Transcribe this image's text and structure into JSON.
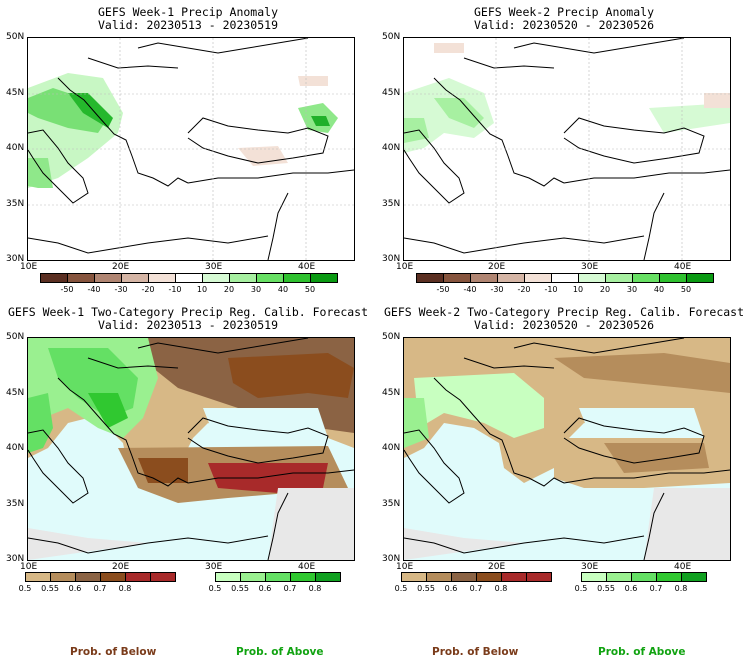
{
  "panels": [
    {
      "title": "GEFS Week-1 Precip Anomaly",
      "valid": "Valid: 20230513 - 20230519"
    },
    {
      "title": "GEFS Week-2 Precip Anomaly",
      "valid": "Valid: 20230520 - 20230526"
    },
    {
      "title": "GEFS Week-1 Two-Category Precip Reg. Calib. Forecast",
      "valid": "Valid: 20230513 - 20230519"
    },
    {
      "title": "GEFS Week-2 Two-Category Precip Reg. Calib. Forecast",
      "valid": "Valid: 20230520 - 20230526"
    }
  ],
  "axes": {
    "lat_labels": [
      "50N",
      "45N",
      "40N",
      "35N",
      "30N"
    ],
    "lon_labels": [
      "10E",
      "20E",
      "30E",
      "40E"
    ]
  },
  "anomaly_colorbar": {
    "labels": [
      "-50",
      "-40",
      "-30",
      "-20",
      "-10",
      "10",
      "20",
      "30",
      "40",
      "50"
    ],
    "colors": [
      "#5b2f22",
      "#86543d",
      "#b08572",
      "#d5b5a5",
      "#f3e1d7",
      "#ffffff",
      "#d6fad4",
      "#a7f0a1",
      "#68e064",
      "#2fc12f",
      "#0a9a12"
    ]
  },
  "prob_below_colorbar": {
    "labels": [
      "0.5",
      "0.55",
      "0.6",
      "0.7",
      "0.8"
    ],
    "colors": [
      "#d7b886",
      "#b58d5c",
      "#8b6344",
      "#8b4d1e",
      "#a82a2a"
    ]
  },
  "prob_above_colorbar": {
    "labels": [
      "0.5",
      "0.55",
      "0.6",
      "0.7",
      "0.8"
    ],
    "colors": [
      "#c8ffc0",
      "#9af090",
      "#64e064",
      "#30c830",
      "#10a020"
    ]
  },
  "legend": {
    "below": "Prob. of Below",
    "above": "Prob. of Above",
    "below_color": "#7a3b1a",
    "above_color": "#11a311"
  }
}
